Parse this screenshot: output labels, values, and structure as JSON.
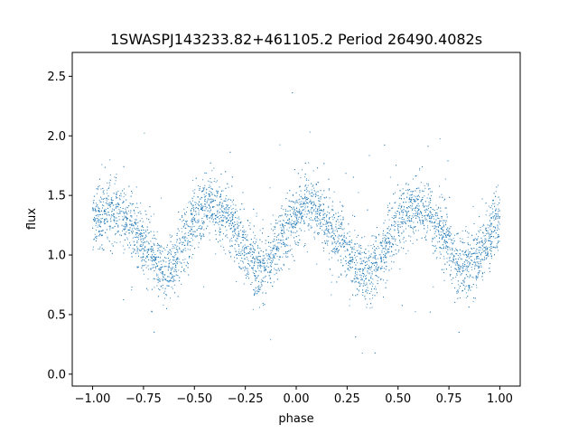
{
  "chart_data": {
    "type": "scatter",
    "title": "1SWASPJ143233.82+461105.2 Period 26490.4082s",
    "xlabel": "phase",
    "ylabel": "flux",
    "xlim": [
      -1.1,
      1.1
    ],
    "ylim": [
      -0.1,
      2.7
    ],
    "x_ticks": [
      -1.0,
      -0.75,
      -0.5,
      -0.25,
      0.0,
      0.25,
      0.5,
      0.75,
      1.0
    ],
    "x_tick_labels": [
      "−1.00",
      "−0.75",
      "−0.50",
      "−0.25",
      "0.00",
      "0.25",
      "0.50",
      "0.75",
      "1.00"
    ],
    "y_ticks": [
      0.0,
      0.5,
      1.0,
      1.5,
      2.0,
      2.5
    ],
    "y_tick_labels": [
      "0.0",
      "0.5",
      "1.0",
      "1.5",
      "2.0",
      "2.5"
    ],
    "grid": false,
    "marker_color": "#1f77b4",
    "series": [
      {
        "points_note_free": true,
        "x": [
          -1.0,
          -0.9,
          -0.8,
          -0.7,
          -0.65,
          -0.6,
          -0.5,
          -0.42,
          -0.35,
          -0.25,
          -0.2,
          -0.15,
          -0.1,
          0.0,
          0.05,
          0.1,
          0.2,
          0.3,
          0.35,
          0.4,
          0.5,
          0.58,
          0.65,
          0.75,
          0.8,
          0.85,
          0.9,
          1.0
        ],
        "y": [
          1.3,
          1.38,
          1.22,
          0.98,
          0.85,
          0.95,
          1.3,
          1.42,
          1.35,
          1.05,
          0.92,
          0.88,
          1.05,
          1.35,
          1.42,
          1.38,
          1.15,
          0.92,
          0.82,
          0.92,
          1.3,
          1.42,
          1.35,
          1.08,
          0.95,
          0.85,
          1.0,
          1.3
        ]
      }
    ]
  }
}
